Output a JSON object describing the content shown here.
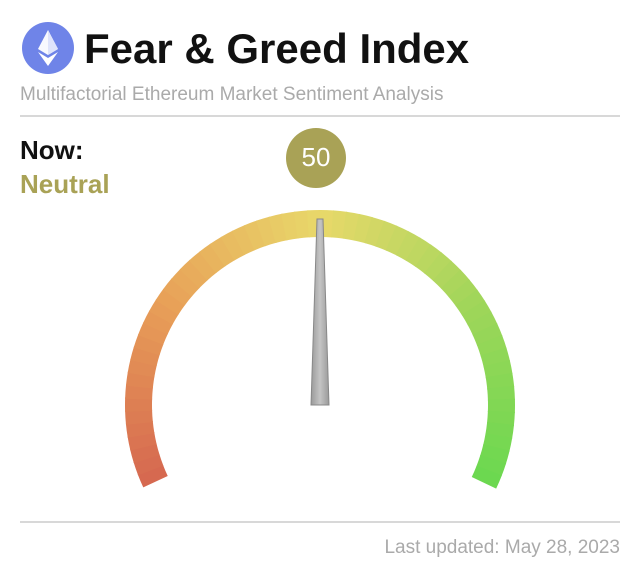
{
  "chart_data": {
    "type": "gauge",
    "title": "Fear & Greed Index",
    "subtitle": "Multifactorial Ethereum Market Sentiment Analysis",
    "now_label": "Now:",
    "sentiment": "Neutral",
    "value": 50,
    "range": [
      0,
      100
    ],
    "color": "#a9a256",
    "updated": "Last updated: May 28, 2023"
  }
}
